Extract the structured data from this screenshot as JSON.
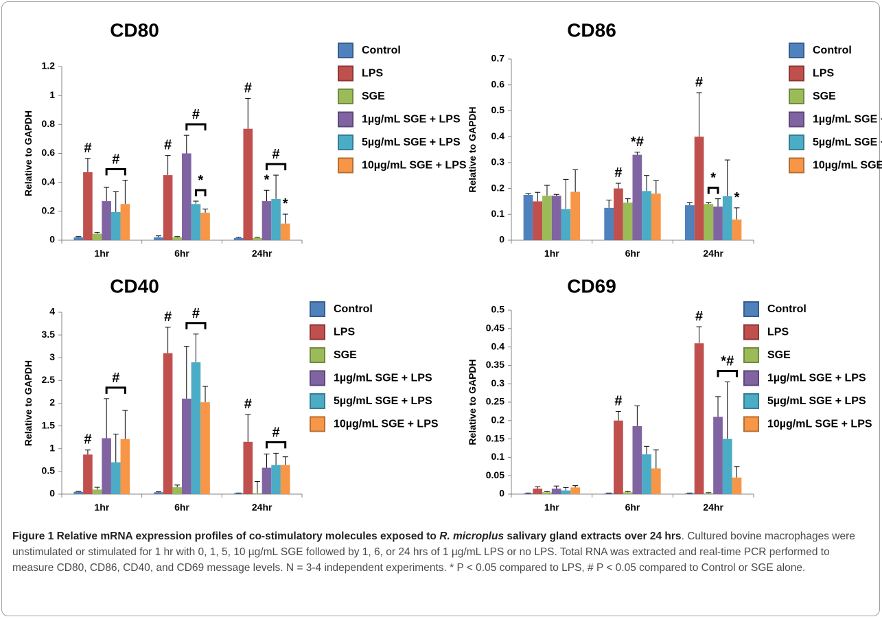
{
  "colors": {
    "series": [
      "#4F81BD",
      "#C0504D",
      "#9BBB59",
      "#8064A2",
      "#4BACC6",
      "#F79646"
    ],
    "series_edge": [
      "#385D8A",
      "#8C3836",
      "#71893F",
      "#5C4776",
      "#357D91",
      "#B66D31"
    ],
    "axis": "#868686",
    "text": "#000000",
    "frame": "#9aa0a6",
    "caption": "#4a4a4a"
  },
  "legend": [
    "Control",
    "LPS",
    "SGE",
    "1µg/mL SGE + LPS",
    "5µg/mL SGE + LPS",
    "10µg/mL SGE + LPS"
  ],
  "caption": {
    "bold_lead": "Figure 1 Relative mRNA expression profiles of co-stimulatory molecules exposed to ",
    "bold_italic": "R. microplus",
    "bold_tail": " salivary gland extracts over 24 hrs",
    "period": ".",
    "body": "Cultured bovine macrophages were unstimulated or stimulated for 1 hr with 0, 1, 5, 10 µg/mL SGE followed by 1, 6, or 24 hrs of 1 µg/mL LPS or no LPS. Total RNA was extracted and real-time PCR performed to measure CD80, CD86, CD40, and CD69 message levels. N = 3-4 independent experiments. * P < 0.05 compared to LPS, # P < 0.05 compared to Control or SGE alone."
  },
  "chart_data": [
    {
      "type": "bar",
      "title": "CD80",
      "ylabel": "Relative to GAPDH",
      "categories": [
        "1hr",
        "6hr",
        "24hr"
      ],
      "ylim": [
        0,
        1.2
      ],
      "yticks": [
        "0",
        "0.2",
        "0.4",
        "0.6",
        "0.8",
        "1",
        "1.2"
      ],
      "series": [
        {
          "name": "Control",
          "values": [
            0.02,
            0.02,
            0.015
          ],
          "errors": [
            0.005,
            0.01,
            0.005
          ]
        },
        {
          "name": "LPS",
          "values": [
            0.47,
            0.45,
            0.77
          ],
          "errors": [
            0.095,
            0.135,
            0.21
          ]
        },
        {
          "name": "SGE",
          "values": [
            0.045,
            0.02,
            0.015
          ],
          "errors": [
            0.01,
            0.005,
            0.005
          ]
        },
        {
          "name": "1µg/mL SGE + LPS",
          "values": [
            0.27,
            0.6,
            0.27
          ],
          "errors": [
            0.095,
            0.125,
            0.075
          ]
        },
        {
          "name": "5µg/mL SGE + LPS",
          "values": [
            0.195,
            0.25,
            0.285
          ],
          "errors": [
            0.14,
            0.02,
            0.165
          ]
        },
        {
          "name": "10µg/mL SGE + LPS",
          "values": [
            0.25,
            0.19,
            0.115
          ],
          "errors": [
            0.165,
            0.025,
            0.065
          ]
        }
      ],
      "annotations": [
        {
          "text": "#",
          "category": 0,
          "series": 1
        },
        {
          "text": "#",
          "category": 0,
          "from": 3,
          "to": 5
        },
        {
          "text": "#",
          "category": 1,
          "series": 1
        },
        {
          "text": "#",
          "category": 1,
          "from": 3,
          "to": 5
        },
        {
          "text": "*",
          "category": 1,
          "from": 4,
          "to": 5
        },
        {
          "text": "#",
          "category": 2,
          "series": 1
        },
        {
          "text": "*",
          "category": 2,
          "series": 3
        },
        {
          "text": "#",
          "category": 2,
          "from": 3,
          "to": 5
        },
        {
          "text": "*",
          "category": 2,
          "series": 5
        }
      ]
    },
    {
      "type": "bar",
      "title": "CD86",
      "ylabel": "Relative to GAPDH",
      "categories": [
        "1hr",
        "6hr",
        "24hr"
      ],
      "ylim": [
        0,
        0.7
      ],
      "yticks": [
        "0",
        "0.1",
        "0.2",
        "0.3",
        "0.4",
        "0.5",
        "0.6",
        "0.7"
      ],
      "series": [
        {
          "name": "Control",
          "values": [
            0.175,
            0.125,
            0.135
          ],
          "errors": [
            0.005,
            0.03,
            0.01
          ]
        },
        {
          "name": "LPS",
          "values": [
            0.15,
            0.2,
            0.4
          ],
          "errors": [
            0.035,
            0.02,
            0.17
          ]
        },
        {
          "name": "SGE",
          "values": [
            0.172,
            0.145,
            0.14
          ],
          "errors": [
            0.04,
            0.015,
            0.005
          ]
        },
        {
          "name": "1µg/mL SGE + LPS",
          "values": [
            0.172,
            0.33,
            0.13
          ],
          "errors": [
            0.005,
            0.01,
            0.03
          ]
        },
        {
          "name": "5µg/mL SGE + LPS",
          "values": [
            0.12,
            0.19,
            0.17
          ],
          "errors": [
            0.115,
            0.06,
            0.14
          ]
        },
        {
          "name": "10µg/mL SGE + LPS",
          "values": [
            0.187,
            0.18,
            0.08
          ],
          "errors": [
            0.085,
            0.05,
            0.045
          ]
        }
      ],
      "annotations": [
        {
          "text": "#",
          "category": 1,
          "series": 1
        },
        {
          "text": "*#",
          "category": 1,
          "series": 3
        },
        {
          "text": "#",
          "category": 2,
          "series": 1
        },
        {
          "text": "*",
          "category": 2,
          "from": 2,
          "to": 3
        },
        {
          "text": "*",
          "category": 2,
          "series": 5
        }
      ]
    },
    {
      "type": "bar",
      "title": "CD40",
      "ylabel": "Relative to GAPDH",
      "categories": [
        "1hr",
        "6hr",
        "24hr"
      ],
      "ylim": [
        0,
        4
      ],
      "yticks": [
        "0",
        "0.5",
        "1",
        "1.5",
        "2",
        "2.5",
        "3",
        "3.5",
        "4"
      ],
      "series": [
        {
          "name": "Control",
          "values": [
            0.05,
            0.04,
            0.02
          ],
          "errors": [
            0.01,
            0.01,
            0.005
          ]
        },
        {
          "name": "LPS",
          "values": [
            0.87,
            3.1,
            1.15
          ],
          "errors": [
            0.1,
            0.57,
            0.6
          ]
        },
        {
          "name": "SGE",
          "values": [
            0.1,
            0.15,
            0.02
          ],
          "errors": [
            0.05,
            0.05,
            0.26
          ]
        },
        {
          "name": "1µg/mL SGE + LPS",
          "values": [
            1.23,
            2.1,
            0.58
          ],
          "errors": [
            0.87,
            1.15,
            0.3
          ]
        },
        {
          "name": "5µg/mL SGE + LPS",
          "values": [
            0.7,
            2.9,
            0.64
          ],
          "errors": [
            0.62,
            0.62,
            0.26
          ]
        },
        {
          "name": "10µg/mL SGE + LPS",
          "values": [
            1.21,
            2.02,
            0.64
          ],
          "errors": [
            0.63,
            0.35,
            0.18
          ]
        }
      ],
      "annotations": [
        {
          "text": "#",
          "category": 0,
          "series": 1
        },
        {
          "text": "#",
          "category": 0,
          "from": 3,
          "to": 5
        },
        {
          "text": "#",
          "category": 1,
          "series": 1
        },
        {
          "text": "#",
          "category": 1,
          "from": 3,
          "to": 5
        },
        {
          "text": "#",
          "category": 2,
          "series": 1
        },
        {
          "text": "#",
          "category": 2,
          "from": 3,
          "to": 5
        }
      ]
    },
    {
      "type": "bar",
      "title": "CD69",
      "ylabel": "Relative to GAPDH",
      "categories": [
        "1hr",
        "6hr",
        "24hr"
      ],
      "ylim": [
        0,
        0.5
      ],
      "yticks": [
        "0",
        "0.05",
        "0.1",
        "0.15",
        "0.2",
        "0.25",
        "0.3",
        "0.35",
        "0.4",
        "0.45",
        "0.5"
      ],
      "series": [
        {
          "name": "Control",
          "values": [
            0.002,
            0.002,
            0.002
          ],
          "errors": [
            0.001,
            0.001,
            0.001
          ]
        },
        {
          "name": "LPS",
          "values": [
            0.015,
            0.2,
            0.41
          ],
          "errors": [
            0.005,
            0.025,
            0.045
          ]
        },
        {
          "name": "SGE",
          "values": [
            0.005,
            0.005,
            0.002
          ],
          "errors": [
            0.002,
            0.002,
            0.002
          ]
        },
        {
          "name": "1µg/mL SGE + LPS",
          "values": [
            0.015,
            0.185,
            0.21
          ],
          "errors": [
            0.007,
            0.055,
            0.055
          ]
        },
        {
          "name": "5µg/mL SGE + LPS",
          "values": [
            0.01,
            0.108,
            0.15
          ],
          "errors": [
            0.008,
            0.022,
            0.155
          ]
        },
        {
          "name": "10µg/mL SGE + LPS",
          "values": [
            0.018,
            0.07,
            0.045
          ],
          "errors": [
            0.005,
            0.05,
            0.03
          ]
        }
      ],
      "annotations": [
        {
          "text": "#",
          "category": 1,
          "series": 1
        },
        {
          "text": "#",
          "category": 2,
          "series": 1
        },
        {
          "text": "*#",
          "category": 2,
          "from": 3,
          "to": 5
        }
      ]
    }
  ]
}
